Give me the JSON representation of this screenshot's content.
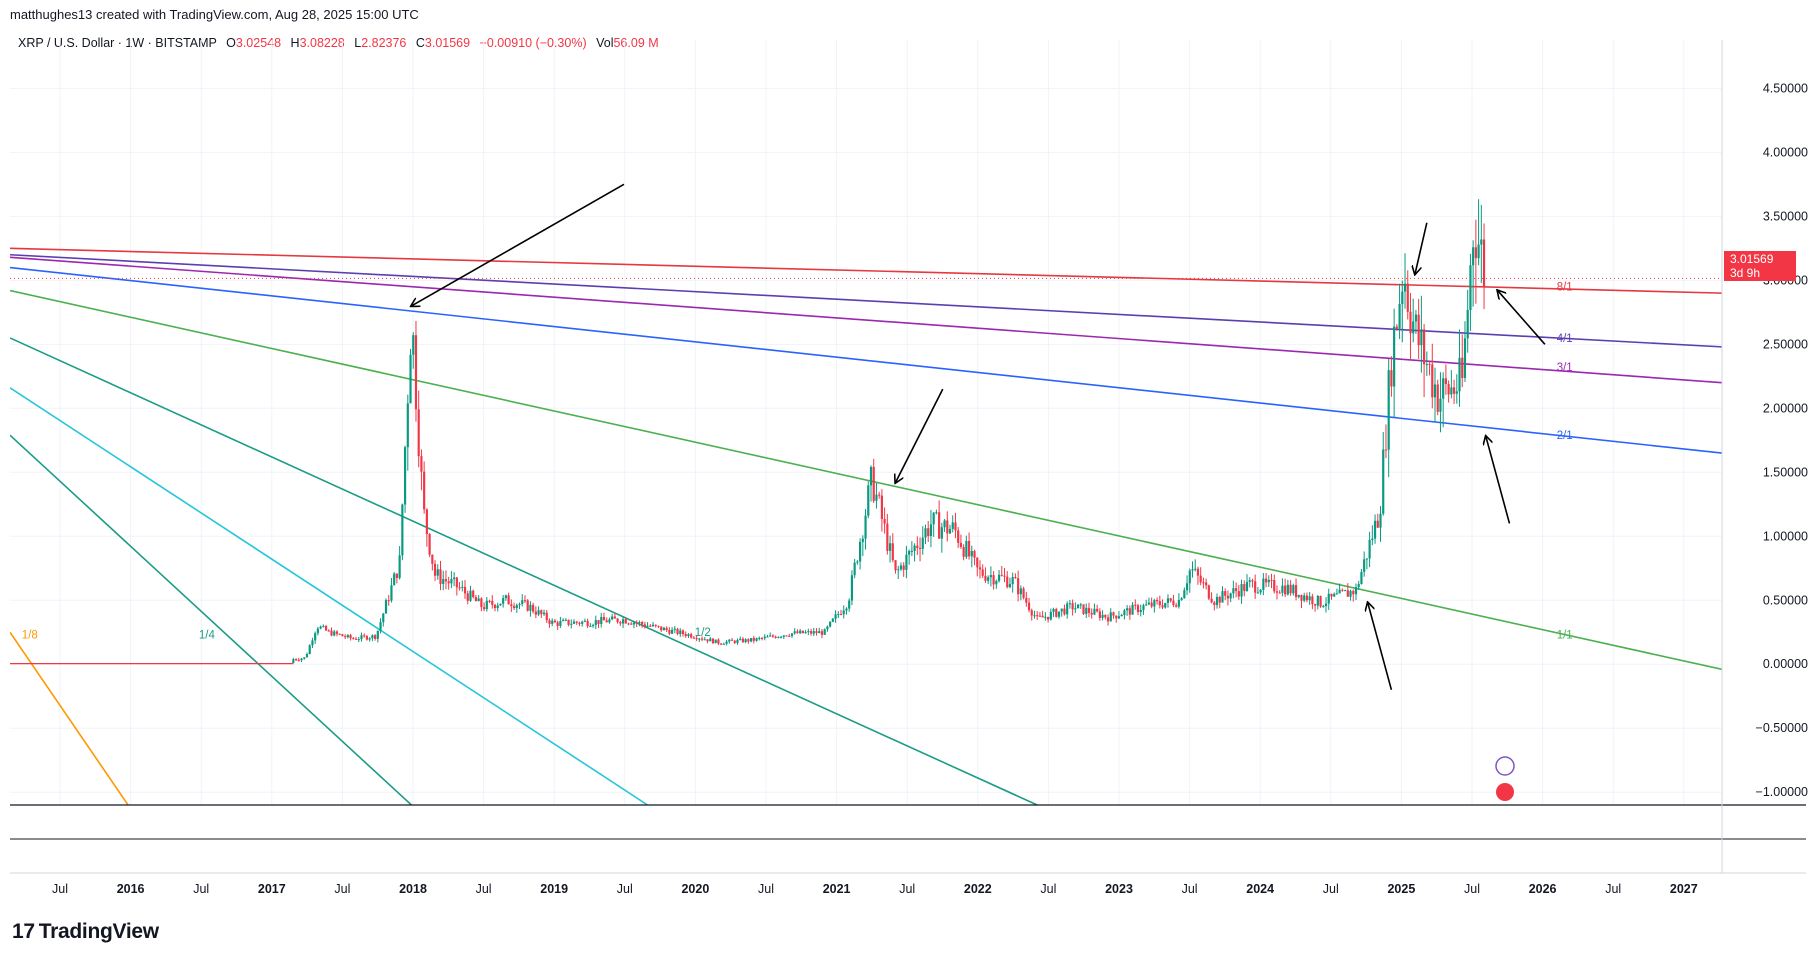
{
  "header": {
    "credit": "matthughes13 created with TradingView.com, Aug 28, 2025 15:00 UTC"
  },
  "legend": {
    "symbol": "XRP / U.S. Dollar · 1W · BITSTAMP",
    "o_label": "O",
    "o_value": "3.02548",
    "h_label": "H",
    "h_value": "3.08228",
    "l_label": "L",
    "l_value": "2.82376",
    "c_label": "C",
    "c_value": "3.01569",
    "change": "−0.00910 (−0.30%)",
    "vol_label": "Vol",
    "vol_value": "56.09 M"
  },
  "price_tag": {
    "price": "3.01569",
    "countdown": "3d 9h"
  },
  "brand": {
    "name": "TradingView",
    "logo": "17"
  },
  "colors": {
    "up": "#089981",
    "down": "#f23645",
    "red_line": "#e5393f",
    "blue_line": "#2962ff",
    "purple_line": "#9c27b0",
    "indigo_line": "#5b3fb2",
    "green_line": "#4caf50",
    "teal_line": "#1b9c85",
    "cyan_line": "#26c6da",
    "orange_line": "#ff9800"
  },
  "chart_data": {
    "type": "candlestick",
    "y_axis_ticks": [
      "4.50000",
      "4.00000",
      "3.50000",
      "3.00000",
      "2.50000",
      "2.00000",
      "1.50000",
      "1.00000",
      "0.50000",
      "0.00000",
      "−0.50000",
      "−1.00000"
    ],
    "ylim": [
      -1.1,
      4.8
    ],
    "x_axis_labels": [
      "Jul",
      "2016",
      "Jul",
      "2017",
      "Jul",
      "2018",
      "Jul",
      "2019",
      "Jul",
      "2020",
      "Jul",
      "2021",
      "Jul",
      "2022",
      "Jul",
      "2023",
      "Jul",
      "2024",
      "Jul",
      "2025",
      "Jul",
      "2026",
      "Jul",
      "2027"
    ],
    "xlim": [
      "2015-03",
      "2027-04"
    ],
    "candles": [
      [
        "2015-03",
        0.01
      ],
      [
        "2016-12",
        0.01
      ],
      [
        "2017-04",
        0.05
      ],
      [
        "2017-05",
        0.3
      ],
      [
        "2017-06",
        0.25
      ],
      [
        "2017-08",
        0.2
      ],
      [
        "2017-10",
        0.22
      ],
      [
        "2017-12",
        0.8
      ],
      [
        "2018-01",
        2.75
      ],
      [
        "2018-02",
        1.2
      ],
      [
        "2018-03",
        0.7
      ],
      [
        "2018-05",
        0.6
      ],
      [
        "2018-07",
        0.45
      ],
      [
        "2018-09",
        0.5
      ],
      [
        "2018-11",
        0.45
      ],
      [
        "2019-01",
        0.32
      ],
      [
        "2019-04",
        0.33
      ],
      [
        "2019-07",
        0.35
      ],
      [
        "2019-10",
        0.28
      ],
      [
        "2020-01",
        0.22
      ],
      [
        "2020-03",
        0.17
      ],
      [
        "2020-06",
        0.19
      ],
      [
        "2020-09",
        0.24
      ],
      [
        "2020-12",
        0.25
      ],
      [
        "2021-02",
        0.5
      ],
      [
        "2021-04",
        1.45
      ],
      [
        "2021-06",
        0.7
      ],
      [
        "2021-09",
        1.1
      ],
      [
        "2021-11",
        1.05
      ],
      [
        "2022-01",
        0.72
      ],
      [
        "2022-04",
        0.65
      ],
      [
        "2022-06",
        0.35
      ],
      [
        "2022-09",
        0.45
      ],
      [
        "2022-12",
        0.37
      ],
      [
        "2023-03",
        0.45
      ],
      [
        "2023-06",
        0.5
      ],
      [
        "2023-07",
        0.75
      ],
      [
        "2023-09",
        0.5
      ],
      [
        "2023-12",
        0.62
      ],
      [
        "2024-03",
        0.6
      ],
      [
        "2024-06",
        0.48
      ],
      [
        "2024-09",
        0.58
      ],
      [
        "2024-11",
        1.2
      ],
      [
        "2024-12",
        2.4
      ],
      [
        "2025-01",
        3.1
      ],
      [
        "2025-02",
        2.6
      ],
      [
        "2025-04",
        2.1
      ],
      [
        "2025-06",
        2.2
      ],
      [
        "2025-07",
        3.5
      ],
      [
        "2025-08",
        3.01
      ]
    ],
    "channel_labels": [
      {
        "label": "8/1",
        "color": "red_line"
      },
      {
        "label": "4/1",
        "color": "indigo_line"
      },
      {
        "label": "3/1",
        "color": "purple_line"
      },
      {
        "label": "2/1",
        "color": "blue_line"
      },
      {
        "label": "1/1",
        "color": "green_line"
      },
      {
        "label": "1/2",
        "color": "teal_line"
      },
      {
        "label": "1/4",
        "color": "teal_line"
      },
      {
        "label": "1/8",
        "color": "orange_line"
      }
    ],
    "last_price": 3.01569
  }
}
